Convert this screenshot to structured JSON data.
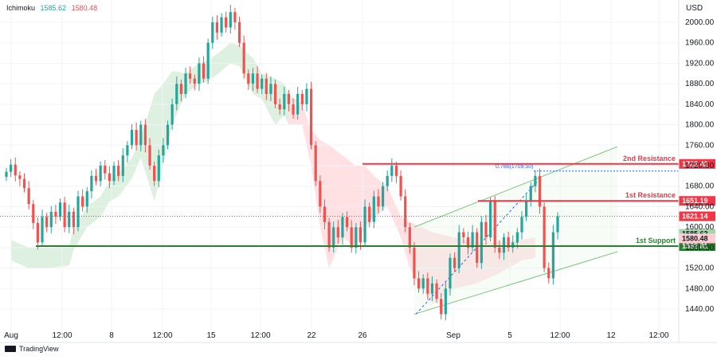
{
  "indicator": {
    "name": "Ichimoku",
    "value1": "1585.62",
    "value2": "1580.48"
  },
  "currency": "USD",
  "brand": "TradingView",
  "colors": {
    "up": "#26a69a",
    "down": "#ef5350",
    "cloudGreen": "#c8e6c9",
    "cloudRed": "#ffcdd2",
    "resistance": "#f23645",
    "support": "#2e7d32",
    "channel": "#66bb6a",
    "fib": "#2962ff"
  },
  "chart_data": {
    "type": "candlestick",
    "ylim": [
      1410,
      2025
    ],
    "y_ticks": [
      1440,
      1480,
      1520,
      1560,
      1600,
      1640,
      1680,
      1720,
      1760,
      1800,
      1840,
      1880,
      1920,
      1960,
      2000
    ],
    "x_ticks": [
      "Aug",
      "12:00",
      "8",
      "12:00",
      "15",
      "12:00",
      "22",
      "26",
      "Sep",
      "5",
      "12:00",
      "12",
      "12:00"
    ],
    "levels": [
      {
        "name": "2nd Resistance",
        "value": 1723.42,
        "label": "1723.42"
      },
      {
        "name": "1st Resistance",
        "value": 1651.19,
        "label": "1651.19"
      },
      {
        "name": "1st Support",
        "value": 1562.81,
        "label": "1562.81"
      }
    ],
    "price_labels": {
      "last": "1621.14",
      "ichimoku1": "1585.62",
      "ichimoku2": "1580.48"
    },
    "fib": {
      "label": "0.786(1709.50)",
      "value": 1709.5
    },
    "closes": [
      1708,
      1722,
      1701,
      1694,
      1676,
      1645,
      1608,
      1570,
      1620,
      1600,
      1630,
      1620,
      1648,
      1600,
      1630,
      1600,
      1660,
      1640,
      1670,
      1700,
      1690,
      1720,
      1705,
      1690,
      1720,
      1700,
      1740,
      1760,
      1790,
      1760,
      1800,
      1760,
      1720,
      1690,
      1740,
      1760,
      1800,
      1840,
      1880,
      1860,
      1900,
      1890,
      1880,
      1920,
      1890,
      1960,
      2000,
      1980,
      2010,
      1990,
      2020,
      2000,
      1960,
      1900,
      1880,
      1900,
      1870,
      1890,
      1860,
      1880,
      1840,
      1830,
      1860,
      1840,
      1820,
      1860,
      1840,
      1870,
      1760,
      1690,
      1640,
      1610,
      1560,
      1600,
      1580,
      1620,
      1600,
      1560,
      1600,
      1570,
      1640,
      1610,
      1660,
      1640,
      1680,
      1700,
      1720,
      1700,
      1660,
      1600,
      1560,
      1500,
      1480,
      1500,
      1470,
      1490,
      1460,
      1430,
      1480,
      1540,
      1520,
      1590,
      1580,
      1560,
      1590,
      1530,
      1610,
      1580,
      1650,
      1560,
      1550,
      1580,
      1560,
      1570,
      1590,
      1620,
      1650,
      1680,
      1700,
      1640,
      1520,
      1500,
      1590,
      1621
    ],
    "ichimoku_green": [
      [
        1,
        1575
      ],
      [
        5,
        1560
      ],
      [
        10,
        1560
      ],
      [
        14,
        1565
      ],
      [
        15,
        1595
      ],
      [
        18,
        1640
      ],
      [
        21,
        1660
      ],
      [
        23,
        1690
      ],
      [
        25,
        1705
      ],
      [
        28,
        1735
      ],
      [
        30,
        1775
      ],
      [
        32,
        1830
      ],
      [
        33,
        1860
      ],
      [
        35,
        1880
      ],
      [
        37,
        1905
      ],
      [
        40,
        1900
      ],
      [
        43,
        1920
      ],
      [
        45,
        1925
      ],
      [
        48,
        1945
      ],
      [
        50,
        1960
      ],
      [
        52,
        1955
      ],
      [
        55,
        1930
      ],
      [
        57,
        1900
      ],
      [
        60,
        1890
      ],
      [
        62,
        1880
      ],
      [
        63,
        1860
      ]
    ],
    "ichimoku_red": [
      [
        63,
        1860
      ],
      [
        66,
        1840
      ],
      [
        68,
        1790
      ],
      [
        70,
        1770
      ],
      [
        72,
        1760
      ],
      [
        75,
        1740
      ],
      [
        78,
        1720
      ],
      [
        80,
        1720
      ],
      [
        82,
        1700
      ],
      [
        85,
        1680
      ],
      [
        88,
        1620
      ],
      [
        90,
        1610
      ],
      [
        95,
        1590
      ],
      [
        100,
        1580
      ],
      [
        105,
        1570
      ],
      [
        110,
        1570
      ],
      [
        115,
        1575
      ],
      [
        118,
        1580
      ]
    ]
  }
}
